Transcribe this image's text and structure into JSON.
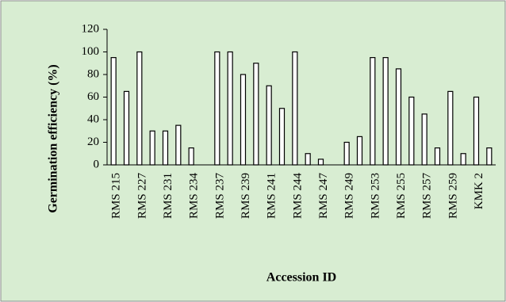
{
  "chart_data": {
    "type": "bar",
    "x_label": "Accession ID",
    "y_label": "Germination efficiency (%)",
    "categories": [
      "RMS 215",
      null,
      "RMS 227",
      null,
      "RMS 231",
      null,
      "RMS 234",
      null,
      "RMS 237",
      null,
      "RMS 239",
      null,
      "RMS 241",
      null,
      "RMS 244",
      null,
      "RMS 247",
      null,
      "RMS 249",
      null,
      "RMS 253",
      null,
      "RMS 255",
      null,
      "RMS 257",
      null,
      "RMS 259",
      null,
      "KMK 2",
      null
    ],
    "values": [
      95,
      65,
      100,
      30,
      30,
      35,
      15,
      0,
      100,
      100,
      80,
      90,
      70,
      50,
      100,
      10,
      5,
      0,
      20,
      25,
      95,
      95,
      85,
      60,
      45,
      15,
      65,
      10,
      60,
      15
    ],
    "color": "#ffffff",
    "ylim": [
      0,
      120
    ],
    "yticks": [
      0,
      20,
      40,
      60,
      80,
      100,
      120
    ],
    "grid": false
  }
}
